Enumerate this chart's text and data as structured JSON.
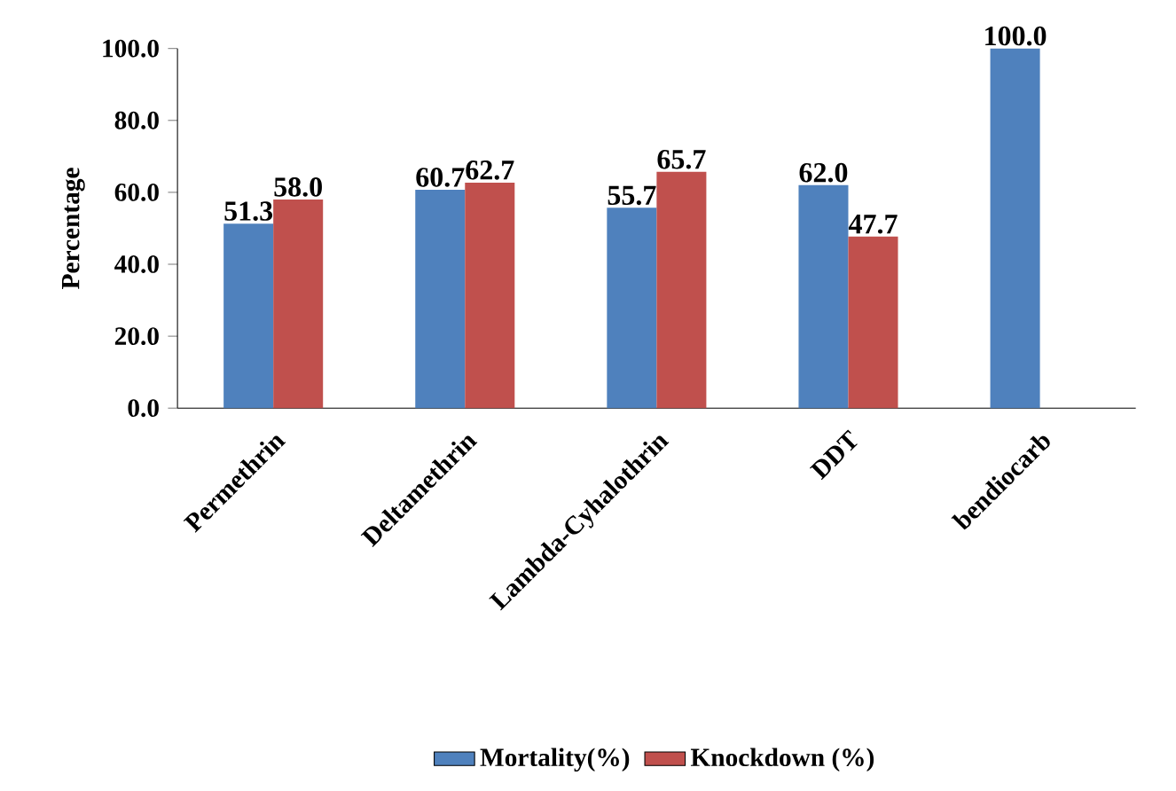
{
  "chart_data": {
    "type": "bar",
    "ylabel": "Percentage",
    "categories": [
      "Permethrin",
      "Deltamethrin",
      "Lambda-Cyhalothrin",
      "DDT",
      "bendiocarb"
    ],
    "series": [
      {
        "name": "Mortality(%)",
        "color": "#4f81bd",
        "values": [
          51.3,
          60.7,
          55.7,
          62.0,
          100.0
        ],
        "value_labels": [
          "51.3",
          "60.7",
          "55.7",
          "62.0",
          "100.0"
        ]
      },
      {
        "name": "Knockdown (%)",
        "color": "#c0504d",
        "values": [
          58.0,
          62.7,
          65.7,
          47.7,
          null
        ],
        "value_labels": [
          "58.0",
          "62.7",
          "65.7",
          "47.7",
          null
        ]
      }
    ],
    "ylim": [
      0,
      100
    ],
    "yticks": [
      {
        "value": 0,
        "label": "0.0"
      },
      {
        "value": 20,
        "label": "20.0"
      },
      {
        "value": 40,
        "label": "40.0"
      },
      {
        "value": 60,
        "label": "60.0"
      },
      {
        "value": 80,
        "label": "80.0"
      },
      {
        "value": 100,
        "label": "100.0"
      }
    ],
    "grid": false,
    "legend": "bottom"
  }
}
